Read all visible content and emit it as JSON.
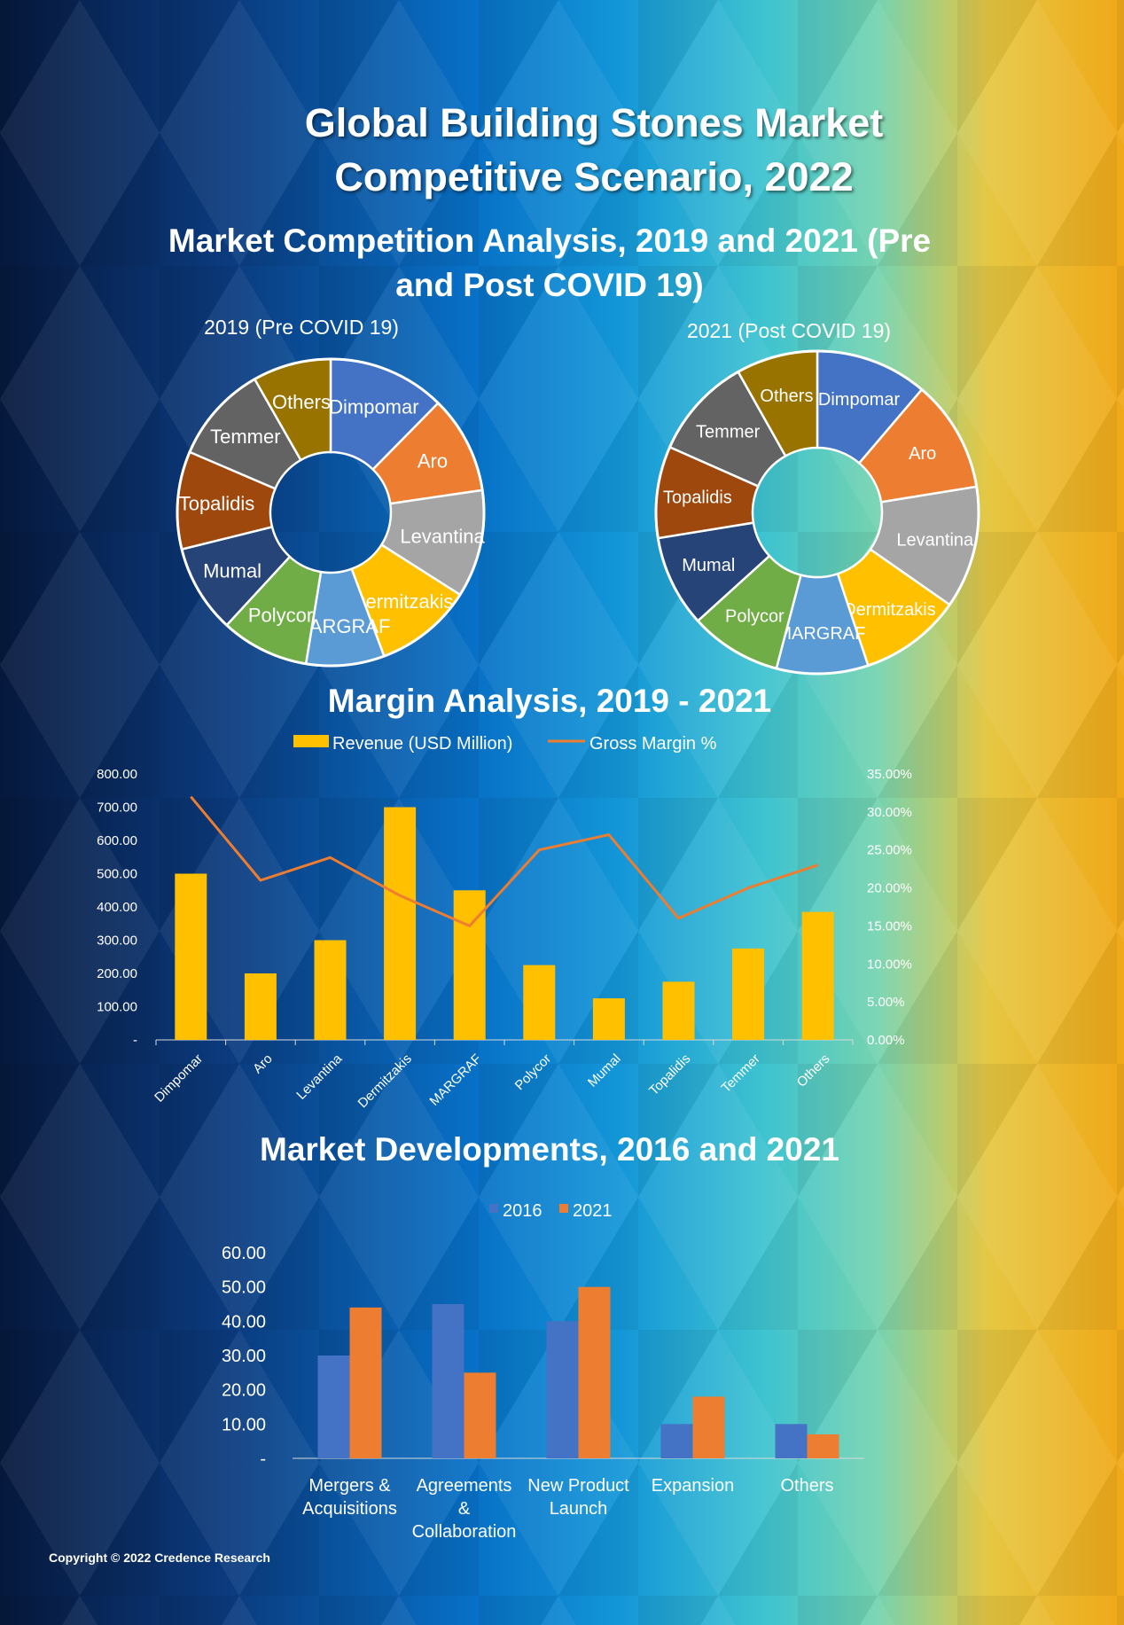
{
  "title": "Global Building Stones Market Competitive Scenario, 2022",
  "subtitle": "Market Competition Analysis, 2019 and 2021 (Pre and Post COVID 19)",
  "copyright": "Copyright © 2022 Credence Research",
  "colors": {
    "Dimpomar": "#4472C4",
    "Aro": "#ED7D31",
    "Levantina": "#A5A5A5",
    "Dermitzakis": "#FFC000",
    "MARGRAF": "#5B9BD5",
    "Polycor": "#70AD47",
    "Mumal": "#264478",
    "Topalidis": "#9E480E",
    "Temmer": "#636363",
    "Others": "#997300",
    "revenue": "#FFC000",
    "gross_margin": "#ED7D31",
    "s2016": "#4472C4",
    "s2021": "#ED7D31"
  },
  "chart_data": [
    {
      "type": "pie",
      "variant": "doughnut",
      "title": "2019 (Pre COVID 19)",
      "labels": [
        "Dimpomar",
        "Aro",
        "Levantina",
        "Dermitzakis",
        "MARGRAF",
        "Polycor",
        "Mumal",
        "Topalidis",
        "Temmer",
        "Others"
      ],
      "values": [
        12,
        10,
        11,
        10,
        8,
        9,
        9,
        10,
        10,
        8
      ]
    },
    {
      "type": "pie",
      "variant": "doughnut",
      "title": "2021 (Post COVID 19)",
      "labels": [
        "Dimpomar",
        "Aro",
        "Levantina",
        "Dermitzakis",
        "MARGRAF",
        "Polycor",
        "Mumal",
        "Topalidis",
        "Temmer",
        "Others"
      ],
      "values": [
        11,
        11,
        12,
        10,
        9,
        9,
        9,
        9,
        10,
        8
      ]
    },
    {
      "type": "bar",
      "title": "Margin Analysis, 2019 - 2021",
      "categories": [
        "Dimpomar",
        "Aro",
        "Levantina",
        "Dermitzakis",
        "MARGRAF",
        "Polycor",
        "Mumal",
        "Topalidis",
        "Temmer",
        "Others"
      ],
      "series": [
        {
          "name": "Revenue (USD Million)",
          "type": "bar",
          "axis": "left",
          "values": [
            500,
            200,
            300,
            700,
            450,
            225,
            125,
            175,
            275,
            385
          ]
        },
        {
          "name": "Gross Margin %",
          "type": "line",
          "axis": "right",
          "values": [
            32,
            21,
            24,
            19,
            15,
            25,
            27,
            16,
            20,
            23
          ]
        }
      ],
      "ylim": [
        0,
        800
      ],
      "y2lim": [
        0,
        35
      ],
      "yticks": [
        "-",
        "100.00",
        "200.00",
        "300.00",
        "400.00",
        "500.00",
        "600.00",
        "700.00",
        "800.00"
      ],
      "y2ticks": [
        "0.00%",
        "5.00%",
        "10.00%",
        "15.00%",
        "20.00%",
        "25.00%",
        "30.00%",
        "35.00%"
      ]
    },
    {
      "type": "bar",
      "title": "Market Developments, 2016 and 2021",
      "categories": [
        "Mergers & Acquisitions",
        "Agreements & Collaboration",
        "New Product Launch",
        "Expansion",
        "Others"
      ],
      "series": [
        {
          "name": "2016",
          "values": [
            30,
            45,
            40,
            10,
            10
          ]
        },
        {
          "name": "2021",
          "values": [
            44,
            25,
            50,
            18,
            7
          ]
        }
      ],
      "ylim": [
        0,
        60
      ],
      "yticks": [
        "-",
        "10.00",
        "20.00",
        "30.00",
        "40.00",
        "50.00",
        "60.00"
      ]
    }
  ]
}
